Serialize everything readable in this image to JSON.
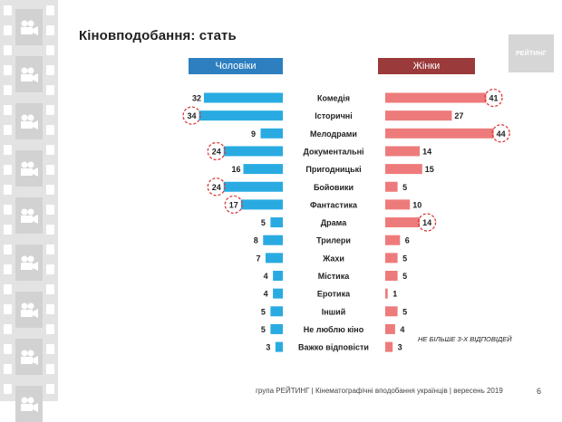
{
  "slide": {
    "title": "Кіновподобання: стать",
    "logo_text": "РЕЙТИНГ",
    "note": "НЕ БІЛЬШЕ 3-Х ВІДПОВІДЕЙ",
    "footer": "група РЕЙТИНГ | Кінематографічні вподобання українців | вересень 2019",
    "page_number": "6"
  },
  "colors": {
    "men_bar": "#29abe2",
    "women_bar": "#ee7b7b",
    "men_header": "#2e7fc0",
    "women_header": "#9b3a3b",
    "highlight": "#d93a3a"
  },
  "chart_data": {
    "type": "bar",
    "orientation": "horizontal-butterfly",
    "categories": [
      "Комедія",
      "Історичні",
      "Мелодрами",
      "Документальні",
      "Пригодницькі",
      "Бойовики",
      "Фантастика",
      "Драма",
      "Трилери",
      "Жахи",
      "Містика",
      "Еротика",
      "Інший",
      "Не люблю кіно",
      "Важко відповісти"
    ],
    "series": [
      {
        "name": "Чоловіки",
        "values": [
          32,
          34,
          9,
          24,
          16,
          24,
          17,
          5,
          8,
          7,
          4,
          4,
          5,
          5,
          3
        ],
        "highlighted": [
          false,
          true,
          false,
          true,
          false,
          true,
          true,
          false,
          false,
          false,
          false,
          false,
          false,
          false,
          false
        ]
      },
      {
        "name": "Жінки",
        "values": [
          41,
          27,
          44,
          14,
          15,
          5,
          10,
          14,
          6,
          5,
          5,
          1,
          5,
          4,
          3
        ],
        "highlighted": [
          true,
          false,
          true,
          false,
          false,
          false,
          false,
          true,
          false,
          false,
          false,
          false,
          false,
          false,
          false
        ]
      }
    ],
    "value_unit": "%"
  }
}
